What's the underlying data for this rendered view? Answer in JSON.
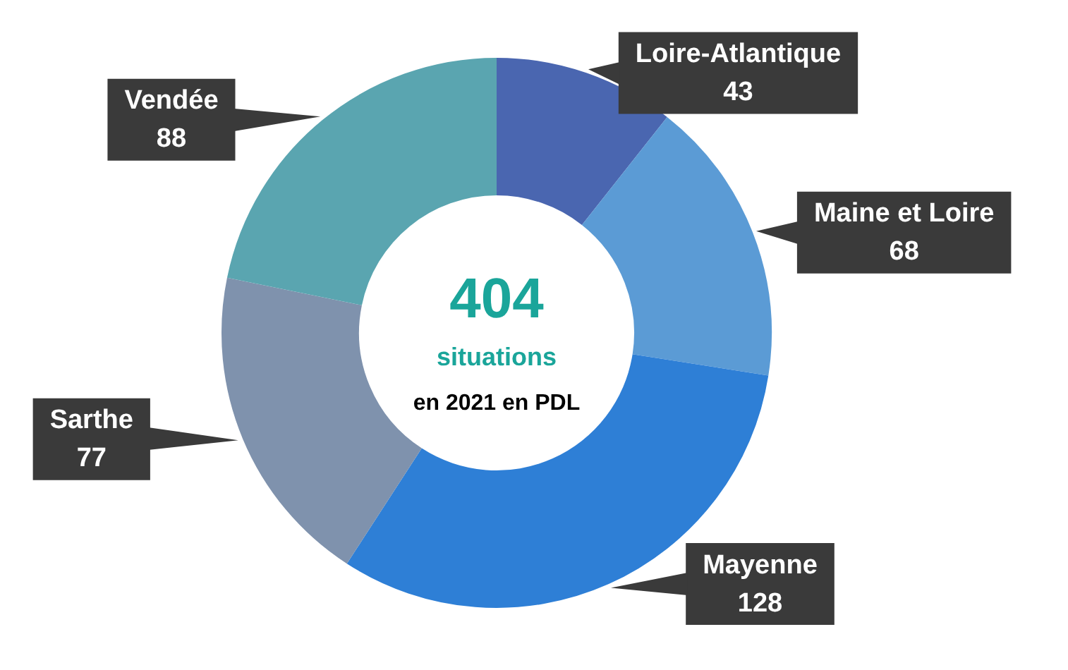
{
  "chart_data": {
    "type": "donut",
    "categories": [
      "Loire-Atlantique",
      "Maine et Loire",
      "Mayenne",
      "Sarthe",
      "Vendée"
    ],
    "values": [
      43,
      68,
      128,
      77,
      88
    ],
    "colors": [
      "#4a66b0",
      "#5b9bd5",
      "#2e7fd6",
      "#7f92ad",
      "#5aa5b0"
    ],
    "data_labels": true,
    "legend": false,
    "annotations": [
      "404",
      "situations",
      "en 2021 en PDL"
    ]
  }
}
